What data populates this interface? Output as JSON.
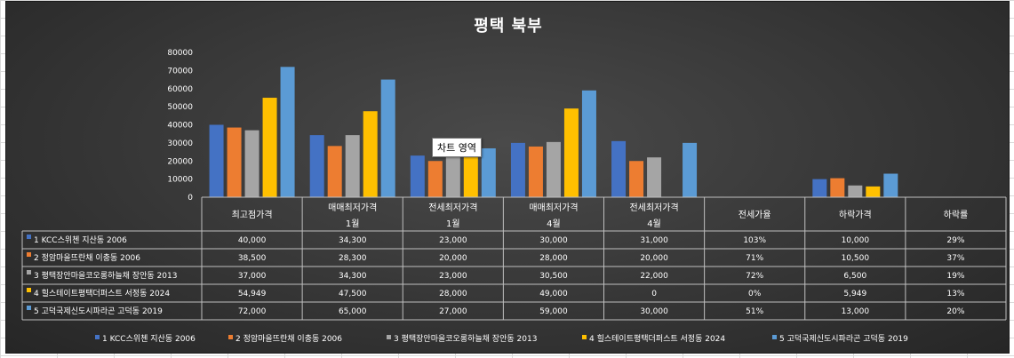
{
  "chart_data": {
    "type": "bar",
    "title": "평택 북부",
    "ylim": [
      0,
      80000
    ],
    "yticks": [
      "0",
      "10000",
      "20000",
      "30000",
      "40000",
      "50000",
      "60000",
      "70000",
      "80000"
    ],
    "categories": [
      [
        "최고점가격"
      ],
      [
        "매매최저가격",
        "1월"
      ],
      [
        "전세최저가격",
        "1월"
      ],
      [
        "매매최저가격",
        "4월"
      ],
      [
        "전세최저가격",
        "4월"
      ],
      [
        "전세가율"
      ],
      [
        "하락가격"
      ],
      [
        "하락률"
      ]
    ],
    "series": [
      {
        "name": "1 KCC스위첸 지산동 2006",
        "color": "#4472c4",
        "values": [
          40000,
          34300,
          23000,
          30000,
          31000,
          103,
          10000,
          29
        ],
        "labels": [
          "40,000",
          "34,300",
          "23,000",
          "30,000",
          "31,000",
          "103%",
          "10,000",
          "29%"
        ]
      },
      {
        "name": "2 정암마을뜨란채 이충동 2006",
        "color": "#ed7d31",
        "values": [
          38500,
          28300,
          20000,
          28000,
          20000,
          71,
          10500,
          37
        ],
        "labels": [
          "38,500",
          "28,300",
          "20,000",
          "28,000",
          "20,000",
          "71%",
          "10,500",
          "37%"
        ]
      },
      {
        "name": "3 평택장안마을코오롱하늘채 장안동 2013",
        "color": "#a5a5a5",
        "values": [
          37000,
          34300,
          23000,
          30500,
          22000,
          72,
          6500,
          19
        ],
        "labels": [
          "37,000",
          "34,300",
          "23,000",
          "30,500",
          "22,000",
          "72%",
          "6,500",
          "19%"
        ]
      },
      {
        "name": "4 힐스테이트평택더퍼스트 서정동 2024",
        "color": "#ffc000",
        "values": [
          54949,
          47500,
          28000,
          49000,
          0,
          0,
          5949,
          13
        ],
        "labels": [
          "54,949",
          "47,500",
          "28,000",
          "49,000",
          "0",
          "0%",
          "5,949",
          "13%"
        ]
      },
      {
        "name": "5 고덕국제신도시파라곤 고덕동 2019",
        "color": "#5b9bd5",
        "values": [
          72000,
          65000,
          27000,
          59000,
          30000,
          51,
          13000,
          20
        ],
        "labels": [
          "72,000",
          "65,000",
          "27,000",
          "59,000",
          "30,000",
          "51%",
          "13,000",
          "20%"
        ]
      }
    ]
  },
  "tooltip": "차트 영역"
}
